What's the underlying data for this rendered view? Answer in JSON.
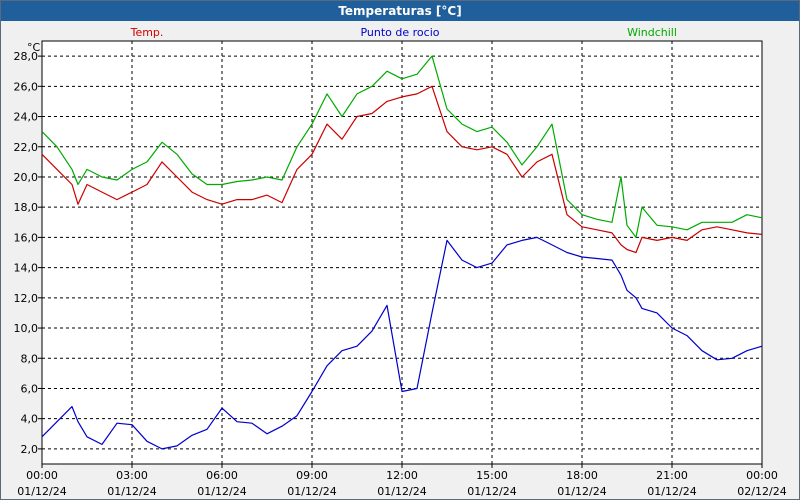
{
  "window": {
    "title": "Temperaturas [°C]"
  },
  "colors": {
    "titlebar": "#1f5f9b",
    "temp": "#cc0000",
    "dew": "#0000cc",
    "windchill": "#00aa00"
  },
  "chart_data": {
    "type": "line",
    "title": "Temperaturas [°C]",
    "ylabel": "°C",
    "ylim": [
      1,
      29
    ],
    "y_ticks": [
      "2,0",
      "4,0",
      "6,0",
      "8,0",
      "10,0",
      "12,0",
      "14,0",
      "16,0",
      "18,0",
      "20,0",
      "22,0",
      "24,0",
      "26,0",
      "28,0"
    ],
    "x_ticks": [
      {
        "time": "00:00",
        "date": "01/12/24"
      },
      {
        "time": "03:00",
        "date": "01/12/24"
      },
      {
        "time": "06:00",
        "date": "01/12/24"
      },
      {
        "time": "09:00",
        "date": "01/12/24"
      },
      {
        "time": "12:00",
        "date": "01/12/24"
      },
      {
        "time": "15:00",
        "date": "01/12/24"
      },
      {
        "time": "18:00",
        "date": "01/12/24"
      },
      {
        "time": "21:00",
        "date": "01/12/24"
      },
      {
        "time": "00:00",
        "date": "02/12/24"
      }
    ],
    "grid": true,
    "legend_position": "top",
    "series": [
      {
        "name": "Temp.",
        "color": "#cc0000",
        "x": [
          0,
          0.5,
          1,
          1.2,
          1.5,
          2,
          2.5,
          3,
          3.5,
          4,
          4.5,
          5,
          5.5,
          6,
          6.5,
          7,
          7.5,
          8,
          8.5,
          9,
          9.5,
          10,
          10.5,
          11,
          11.5,
          12,
          12.5,
          13,
          13.5,
          14,
          14.5,
          15,
          15.5,
          16,
          16.5,
          17,
          17.5,
          18,
          18.5,
          19,
          19.3,
          19.5,
          19.8,
          20,
          20.5,
          21,
          21.5,
          22,
          22.5,
          23,
          23.5,
          24
        ],
        "y": [
          21.5,
          20.5,
          19.5,
          18.2,
          19.5,
          19.0,
          18.5,
          19.0,
          19.5,
          21.0,
          20.0,
          19.0,
          18.5,
          18.2,
          18.5,
          18.5,
          18.8,
          18.3,
          20.5,
          21.5,
          23.5,
          22.5,
          24.0,
          24.2,
          25.0,
          25.3,
          25.5,
          26.0,
          23.0,
          22.0,
          21.8,
          22.0,
          21.5,
          20.0,
          21.0,
          21.5,
          17.5,
          16.7,
          16.5,
          16.3,
          15.5,
          15.2,
          15.0,
          16.0,
          15.8,
          16.0,
          15.8,
          16.5,
          16.7,
          16.5,
          16.3,
          16.2
        ]
      },
      {
        "name": "Windchill",
        "color": "#00aa00",
        "x": [
          0,
          0.5,
          1,
          1.2,
          1.5,
          2,
          2.5,
          3,
          3.5,
          4,
          4.5,
          5,
          5.5,
          6,
          6.5,
          7,
          7.5,
          8,
          8.5,
          9,
          9.5,
          10,
          10.5,
          11,
          11.5,
          12,
          12.5,
          13,
          13.5,
          14,
          14.5,
          15,
          15.5,
          16,
          16.5,
          17,
          17.5,
          18,
          18.5,
          19,
          19.3,
          19.5,
          19.8,
          20,
          20.5,
          21,
          21.5,
          22,
          22.5,
          23,
          23.5,
          24
        ],
        "y": [
          23.0,
          22.0,
          20.5,
          19.5,
          20.5,
          20.0,
          19.8,
          20.5,
          21.0,
          22.3,
          21.5,
          20.2,
          19.5,
          19.5,
          19.7,
          19.8,
          20.0,
          19.8,
          22.0,
          23.5,
          25.5,
          24.0,
          25.5,
          26.0,
          27.0,
          26.5,
          26.8,
          28.0,
          24.5,
          23.5,
          23.0,
          23.3,
          22.3,
          20.8,
          22.0,
          23.5,
          18.5,
          17.5,
          17.2,
          17.0,
          20.0,
          16.8,
          16.0,
          18.0,
          16.8,
          16.7,
          16.5,
          17.0,
          17.0,
          17.0,
          17.5,
          17.3
        ]
      },
      {
        "name": "Punto de rocio",
        "color": "#0000cc",
        "x": [
          0,
          0.5,
          1,
          1.2,
          1.5,
          2,
          2.5,
          3,
          3.5,
          4,
          4.5,
          5,
          5.5,
          6,
          6.5,
          7,
          7.5,
          8,
          8.5,
          9,
          9.5,
          10,
          10.5,
          11,
          11.5,
          12,
          12.5,
          13,
          13.5,
          14,
          14.5,
          15,
          15.5,
          16,
          16.5,
          17,
          17.5,
          18,
          18.5,
          19,
          19.3,
          19.5,
          19.8,
          20,
          20.5,
          21,
          21.5,
          22,
          22.5,
          23,
          23.5,
          24
        ],
        "y": [
          2.8,
          3.8,
          4.8,
          3.8,
          2.8,
          2.3,
          3.7,
          3.6,
          2.5,
          2.0,
          2.2,
          2.9,
          3.3,
          4.7,
          3.8,
          3.7,
          3.0,
          3.5,
          4.2,
          5.8,
          7.5,
          8.5,
          8.8,
          9.8,
          11.5,
          5.8,
          6.0,
          11.0,
          15.8,
          14.5,
          14.0,
          14.3,
          15.5,
          15.8,
          16.0,
          15.5,
          15.0,
          14.7,
          14.6,
          14.5,
          13.5,
          12.5,
          12.0,
          11.3,
          11.0,
          10.0,
          9.5,
          8.5,
          7.9,
          8.0,
          8.5,
          8.8
        ]
      }
    ]
  }
}
